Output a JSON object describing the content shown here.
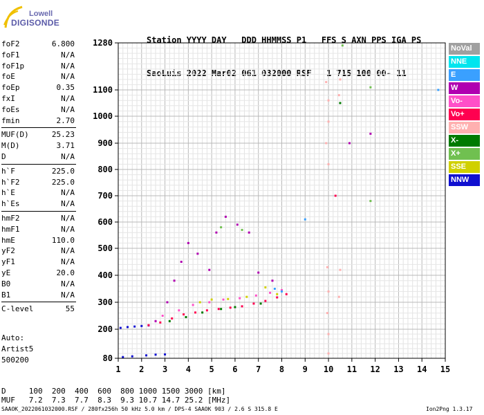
{
  "logo": {
    "line1": "Lowell",
    "line2": "DIGISONDE"
  },
  "header": {
    "labels": "Station YYYY DAY   DDD HHMMSS P1   FFS S AXN PPS IGA PS",
    "values": "SaoLuis 2022 Mar02 061 032000 RSF   1 715 100 00- 11"
  },
  "params": [
    {
      "k": "foF2",
      "v": "6.800"
    },
    {
      "k": "foF1",
      "v": "N/A"
    },
    {
      "k": "foF1p",
      "v": "N/A"
    },
    {
      "k": "foE",
      "v": "N/A"
    },
    {
      "k": "foEp",
      "v": "0.35"
    },
    {
      "k": "fxI",
      "v": "N/A"
    },
    {
      "k": "foEs",
      "v": "N/A"
    },
    {
      "k": "fmin",
      "v": "2.70"
    },
    {
      "k": "MUF(D)",
      "v": "25.23"
    },
    {
      "k": "M(D)",
      "v": "3.71"
    },
    {
      "k": "D",
      "v": "N/A"
    },
    {
      "k": "h`F",
      "v": "225.0"
    },
    {
      "k": "h`F2",
      "v": "225.0"
    },
    {
      "k": "h`E",
      "v": "N/A"
    },
    {
      "k": "h`Es",
      "v": "N/A"
    },
    {
      "k": "hmF2",
      "v": "N/A"
    },
    {
      "k": "hmF1",
      "v": "N/A"
    },
    {
      "k": "hmE",
      "v": "110.0"
    },
    {
      "k": "yF2",
      "v": "N/A"
    },
    {
      "k": "yF1",
      "v": "N/A"
    },
    {
      "k": "yE",
      "v": "20.0"
    },
    {
      "k": "B0",
      "v": "N/A"
    },
    {
      "k": "B1",
      "v": "N/A"
    },
    {
      "k": "C-level",
      "v": "55"
    }
  ],
  "autoscaling": {
    "line1": "Auto:",
    "line2": "Artist5",
    "line3": "500200"
  },
  "legend": [
    {
      "label": "NoVal",
      "color": "#a0a0a0"
    },
    {
      "label": "NNE",
      "color": "#00e5ee"
    },
    {
      "label": "E",
      "color": "#3aa0ff"
    },
    {
      "label": "W",
      "color": "#b000b0"
    },
    {
      "label": "Vo-",
      "color": "#ff50c8"
    },
    {
      "label": "Vo+",
      "color": "#ff0050"
    },
    {
      "label": "SSW",
      "color": "#ffb0b0"
    },
    {
      "label": "X-",
      "color": "#007a00"
    },
    {
      "label": "X+",
      "color": "#70c050"
    },
    {
      "label": "SSE",
      "color": "#d0d000"
    },
    {
      "label": "NNW",
      "color": "#1010d0"
    }
  ],
  "muf_table": {
    "d_row": "D     100  200  400  600  800 1000 1500 3000 [km]",
    "muf_row": "MUF   7.2  7.3  7.7  8.3  9.3 10.7 14.7 25.2 [MHz]"
  },
  "footer": {
    "left": "SAAOK_2022061032000.RSF / 280fx256h 50 kHz 5.0 km / DPS-4 SAAOK 903 / 2.6 S 315.8 E",
    "right": "Ion2Png 1.3.17"
  },
  "chart_data": {
    "type": "scatter",
    "x_ticks": [
      1,
      2,
      3,
      4,
      5,
      6,
      7,
      8,
      9,
      10,
      11,
      12,
      13,
      14,
      15
    ],
    "y_ticks": [
      80,
      200,
      300,
      400,
      500,
      600,
      700,
      800,
      900,
      1000,
      1100,
      1280
    ],
    "xlim": [
      1,
      15
    ],
    "ylim": [
      80,
      1280
    ],
    "y_scale": "nonlinear",
    "grid": true,
    "traces": [
      {
        "name": "NNW",
        "color": "#1010d0",
        "points": [
          [
            1.1,
            205
          ],
          [
            1.4,
            208
          ],
          [
            1.7,
            210
          ],
          [
            2.0,
            212
          ],
          [
            2.3,
            214
          ],
          [
            1.2,
            85
          ],
          [
            1.6,
            88
          ],
          [
            2.2,
            92
          ],
          [
            2.6,
            95
          ],
          [
            3.0,
            96
          ]
        ]
      },
      {
        "name": "Vo+",
        "color": "#ff0050",
        "points": [
          [
            2.3,
            215
          ],
          [
            2.8,
            225
          ],
          [
            3.3,
            240
          ],
          [
            3.8,
            255
          ],
          [
            4.3,
            262
          ],
          [
            4.8,
            270
          ],
          [
            5.3,
            275
          ],
          [
            5.8,
            280
          ],
          [
            6.3,
            285
          ],
          [
            6.8,
            295
          ],
          [
            7.3,
            305
          ],
          [
            7.8,
            318
          ],
          [
            8.2,
            330
          ],
          [
            10.3,
            700
          ]
        ]
      },
      {
        "name": "W",
        "color": "#b000b0",
        "points": [
          [
            2.6,
            230
          ],
          [
            3.1,
            300
          ],
          [
            3.4,
            380
          ],
          [
            3.7,
            450
          ],
          [
            4.0,
            520
          ],
          [
            4.4,
            480
          ],
          [
            4.9,
            420
          ],
          [
            5.2,
            560
          ],
          [
            5.6,
            620
          ],
          [
            6.1,
            590
          ],
          [
            6.6,
            560
          ],
          [
            7.0,
            410
          ],
          [
            7.6,
            380
          ],
          [
            10.9,
            900
          ],
          [
            11.8,
            935
          ]
        ]
      },
      {
        "name": "Vo-",
        "color": "#ff50c8",
        "points": [
          [
            2.9,
            250
          ],
          [
            3.6,
            270
          ],
          [
            4.2,
            290
          ],
          [
            4.9,
            300
          ],
          [
            5.5,
            310
          ],
          [
            6.2,
            315
          ],
          [
            6.9,
            325
          ],
          [
            7.5,
            335
          ],
          [
            8.0,
            345
          ]
        ]
      },
      {
        "name": "X-",
        "color": "#007a00",
        "points": [
          [
            3.2,
            230
          ],
          [
            3.9,
            245
          ],
          [
            4.6,
            262
          ],
          [
            5.4,
            275
          ],
          [
            6.0,
            282
          ],
          [
            7.1,
            295
          ],
          [
            10.5,
            1050
          ]
        ]
      },
      {
        "name": "SSE",
        "color": "#d0d000",
        "points": [
          [
            4.5,
            300
          ],
          [
            5.0,
            310
          ],
          [
            5.7,
            312
          ],
          [
            6.5,
            320
          ],
          [
            7.3,
            355
          ],
          [
            7.8,
            330
          ]
        ]
      },
      {
        "name": "E",
        "color": "#3aa0ff",
        "points": [
          [
            7.7,
            350
          ],
          [
            8.0,
            340
          ],
          [
            9.0,
            610
          ],
          [
            14.7,
            1100
          ]
        ]
      },
      {
        "name": "SSW",
        "color": "#ffb0b0",
        "points": [
          [
            9.9,
            1130
          ],
          [
            10.0,
            1060
          ],
          [
            10.0,
            980
          ],
          [
            9.9,
            900
          ],
          [
            10.0,
            820
          ],
          [
            9.95,
            430
          ],
          [
            10.0,
            340
          ],
          [
            9.95,
            260
          ],
          [
            10.0,
            180
          ],
          [
            10.0,
            100
          ],
          [
            10.5,
            1140
          ],
          [
            10.45,
            1080
          ],
          [
            10.5,
            420
          ],
          [
            10.45,
            320
          ]
        ]
      },
      {
        "name": "X+",
        "color": "#70c050",
        "points": [
          [
            5.4,
            580
          ],
          [
            6.3,
            570
          ],
          [
            11.8,
            1110
          ],
          [
            11.8,
            680
          ],
          [
            10.6,
            1270
          ]
        ]
      }
    ]
  }
}
